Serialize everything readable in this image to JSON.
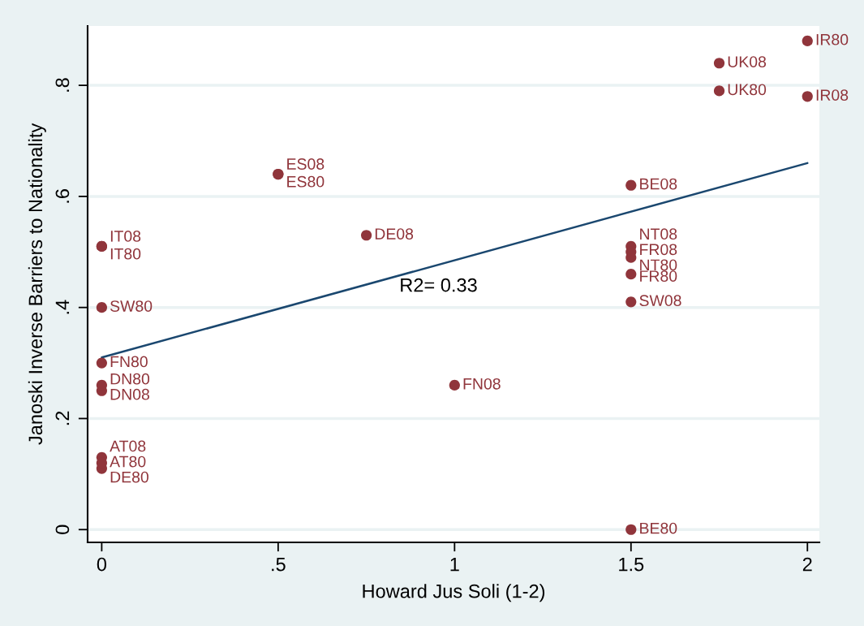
{
  "chart_data": {
    "type": "scatter",
    "xlabel": "Howard Jus Soli (1-2)",
    "ylabel": "Janoski Inverse Barriers to Nationality",
    "xlim": [
      -0.04,
      2.034
    ],
    "ylim": [
      -0.023,
      0.907
    ],
    "xticks": [
      0,
      {
        "value": 0.5,
        "label": ".5"
      },
      1,
      1.5,
      2
    ],
    "yticks": [
      0,
      {
        "value": 0.2,
        "label": ".2"
      },
      {
        "value": 0.4,
        "label": ".4"
      },
      {
        "value": 0.6,
        "label": ".6"
      },
      {
        "value": 0.8,
        "label": ".8"
      }
    ],
    "grid": "y",
    "marker": "circle",
    "annotations": [
      "R2= 0.33"
    ],
    "series": [
      {
        "color": "#90353b",
        "x": [
          2,
          2,
          1.75,
          1.75,
          0.5,
          0.5,
          1.5,
          1.5,
          0.75,
          0,
          0,
          0,
          1.5,
          1.5,
          1.5,
          1.5,
          1.5,
          0,
          1,
          0,
          0,
          0,
          0,
          0
        ],
        "values": [
          0.88,
          0.78,
          0.84,
          0.79,
          0.64,
          0.64,
          0.62,
          0,
          0.53,
          0.11,
          0.51,
          0.51,
          0.51,
          0.49,
          0.5,
          0.46,
          0.41,
          0.4,
          0.26,
          0.3,
          0.25,
          0.26,
          0.13,
          0.12
        ],
        "value_labels": [
          "IR80",
          "IR08",
          "UK08",
          "UK80",
          "ES08",
          "ES80",
          "BE08",
          "BE80",
          "DE08",
          "DE80",
          "IT08",
          "IT80",
          "NT08",
          "NT80",
          "FR08",
          "FR80",
          "SW08",
          "SW80",
          "FN08",
          "FN80",
          "DN08",
          "DN80",
          "AT08",
          "AT80"
        ]
      },
      {
        "type": "line",
        "color": "#1a476f",
        "marker": "none",
        "line_style": "solid",
        "x": [
          0,
          2
        ],
        "values": [
          0.31,
          0.66
        ]
      }
    ]
  }
}
